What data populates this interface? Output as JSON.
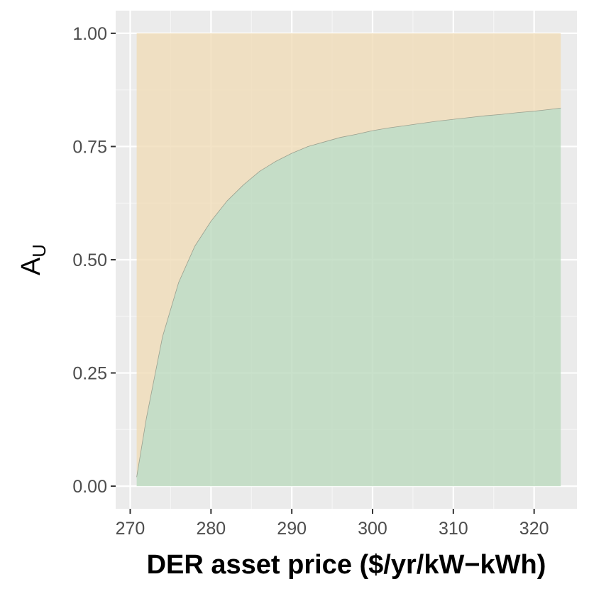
{
  "chart_data": {
    "type": "area",
    "xlabel": "DER asset price ($/yr/kW−kWh)",
    "ylabel": {
      "main": "A",
      "sub": "U"
    },
    "xlim": [
      268.2,
      325.3
    ],
    "ylim": [
      -0.05,
      1.05
    ],
    "x_ticks": [
      270,
      280,
      290,
      300,
      310,
      320
    ],
    "x_tick_labels": [
      "270",
      "280",
      "290",
      "300",
      "310",
      "320"
    ],
    "y_ticks": [
      0,
      0.25,
      0.5,
      0.75,
      1.0
    ],
    "y_tick_labels": [
      "0.00",
      "0.25",
      "0.50",
      "0.75",
      "1.00"
    ],
    "grid": true,
    "series": [
      {
        "fill": "#bcd9be",
        "x": [
          270.8,
          272,
          274,
          276,
          278,
          280,
          282,
          284,
          286,
          288,
          290,
          292,
          294,
          296,
          298,
          300,
          302,
          304,
          306,
          308,
          310,
          312,
          314,
          316,
          318,
          320,
          322,
          323.3
        ],
        "upper": [
          0.02,
          0.15,
          0.33,
          0.45,
          0.53,
          0.585,
          0.63,
          0.665,
          0.695,
          0.717,
          0.735,
          0.75,
          0.76,
          0.77,
          0.777,
          0.785,
          0.791,
          0.796,
          0.801,
          0.806,
          0.81,
          0.814,
          0.818,
          0.821,
          0.825,
          0.828,
          0.832,
          0.835
        ],
        "lower": 0
      },
      {
        "fill": "#f0dcb8",
        "x": [
          270.8,
          272,
          274,
          276,
          278,
          280,
          282,
          284,
          286,
          288,
          290,
          292,
          294,
          296,
          298,
          300,
          302,
          304,
          306,
          308,
          310,
          312,
          314,
          316,
          318,
          320,
          322,
          323.3
        ],
        "lower": [
          0.02,
          0.15,
          0.33,
          0.45,
          0.53,
          0.585,
          0.63,
          0.665,
          0.695,
          0.717,
          0.735,
          0.75,
          0.76,
          0.77,
          0.777,
          0.785,
          0.791,
          0.796,
          0.801,
          0.806,
          0.81,
          0.814,
          0.818,
          0.821,
          0.825,
          0.828,
          0.832,
          0.835
        ],
        "upper": 1
      }
    ],
    "colors": {
      "panel": "#ebebeb",
      "grid_major": "#ffffff",
      "grid_minor": "#f5f5f5",
      "boundary_line": "#9aa08f"
    }
  }
}
